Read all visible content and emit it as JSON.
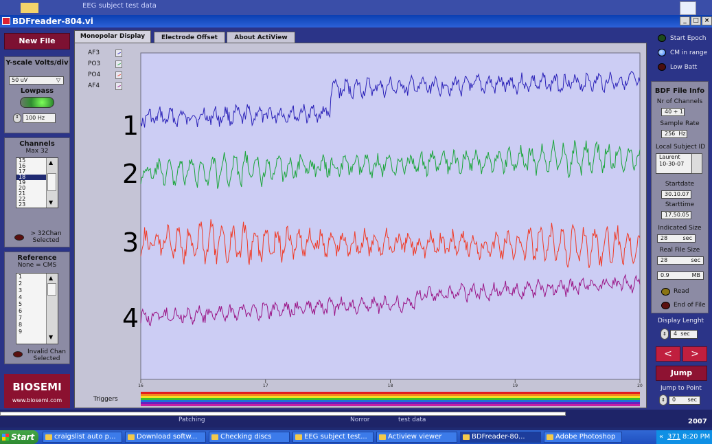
{
  "window": {
    "title": "BDFreader-804.vi",
    "bg_caption": "EEG subject test data"
  },
  "tabs": [
    {
      "label": "Monopolar Display",
      "active": true
    },
    {
      "label": "Electrode Offset",
      "active": false
    },
    {
      "label": "About ActiView",
      "active": false
    }
  ],
  "left": {
    "new_file": "New File",
    "yscale_label": "Y-scale Volts/div",
    "yscale_value": "50 uV",
    "lowpass_label": "Lowpass",
    "lowpass_value": "100",
    "lowpass_unit": "Hz",
    "channels_label": "Channels",
    "channels_max": "Max 32",
    "channel_items": [
      "15",
      "16",
      "17",
      "18",
      "19",
      "20",
      "21",
      "22",
      "23"
    ],
    "channel_selected": "18",
    "gt32_label": "> 32Chan Selected",
    "reference_label": "Reference",
    "reference_sub": "None = CMS",
    "reference_items": [
      "1",
      "2",
      "3",
      "4",
      "5",
      "6",
      "7",
      "8",
      "9"
    ],
    "invalid_label": "Invalid Chan Selected",
    "logo": "BIOSEMI",
    "url": "www.biosemi.com"
  },
  "legend": [
    "AF3",
    "PO3",
    "PO4",
    "AF4"
  ],
  "trace_numbers": [
    "1",
    "2",
    "3",
    "4"
  ],
  "trace_colors": [
    "#2b22b8",
    "#1aa53a",
    "#f03a26",
    "#9a1486"
  ],
  "x_ticks": [
    "16",
    "17",
    "18",
    "19",
    "20"
  ],
  "triggers_label": "Triggers",
  "right": {
    "start_epoch": "Start Epoch",
    "cm_in_range": "CM in range",
    "low_batt": "Low Batt",
    "info_title": "BDF File Info",
    "nr_channels_label": "Nr of Channels",
    "nr_channels_value": "40 + 1",
    "sample_rate_label": "Sample Rate",
    "sample_rate_value": "256",
    "sample_rate_unit": "Hz",
    "subject_label": "Local Subject ID",
    "subject_value_1": "Laurent",
    "subject_value_2": "10-30-07",
    "startdate_label": "Startdate",
    "startdate_value": "30.10.07",
    "starttime_label": "Starttime",
    "starttime_value": "17.50.05",
    "indicated_label": "Indicated Size",
    "indicated_value": "28",
    "indicated_unit": "sec",
    "real_label": "Real File Size",
    "real_value": "28",
    "real_unit": "sec",
    "mb_value": "0.9",
    "mb_unit": "MB",
    "read_label": "Read",
    "eof_label": "End of File",
    "display_length_label": "Display Lenght",
    "display_length_value": "4",
    "display_length_unit": "sec",
    "prev": "<",
    "next": ">",
    "jump": "Jump",
    "jump_to_label": "Jump to Point",
    "jump_to_value": "0",
    "jump_to_unit": "sec"
  },
  "status": {
    "year": "2007",
    "left": "Patching",
    "mid": "Norror",
    "mid2": "test data"
  },
  "taskbar": {
    "start": "Start",
    "items": [
      "craigslist auto p...",
      "Download softw...",
      "Checking discs",
      "EEG subject test...",
      "Actiview viewer",
      "BDFreader-80...",
      "Adobe Photoshop"
    ],
    "active_index": 5,
    "tray_count": "371",
    "clock": "8:20 PM"
  }
}
